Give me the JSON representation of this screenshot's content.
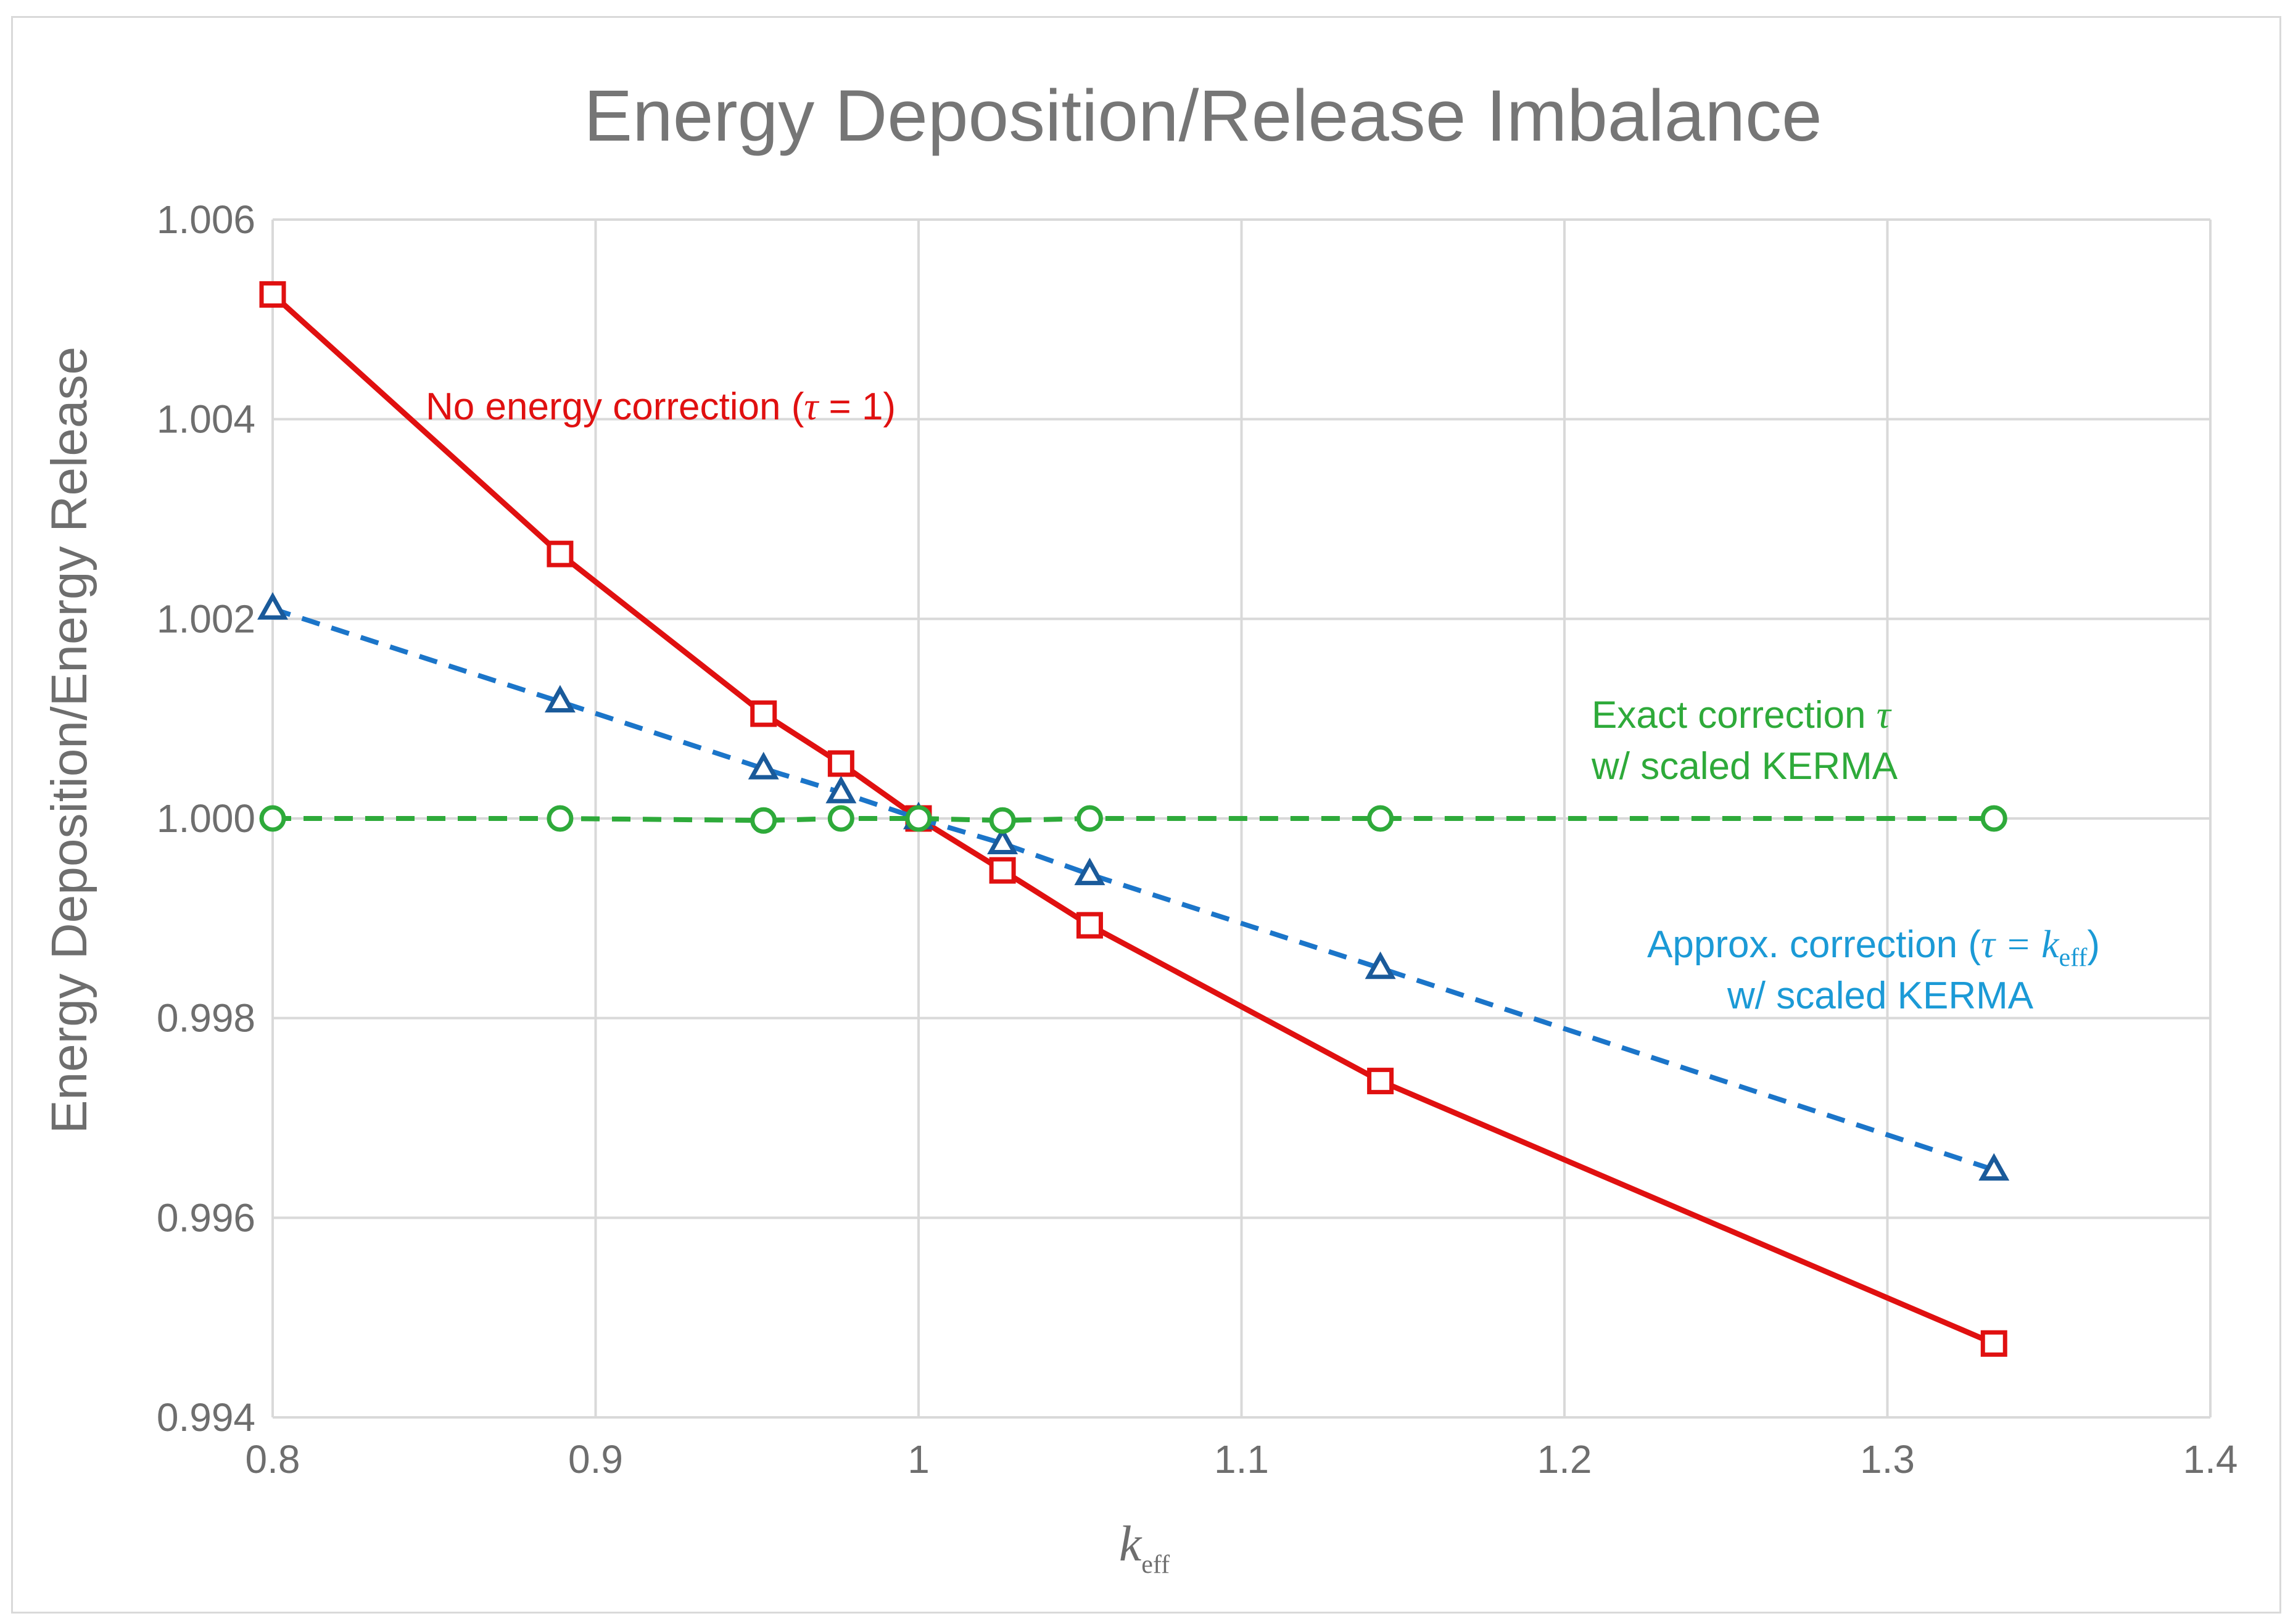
{
  "chart_data": {
    "type": "line",
    "title": "Energy Deposition/Release Imbalance",
    "xlabel": "k",
    "xlabel_sub": "eff",
    "ylabel": "Energy Deposition/Energy Release",
    "xlim": [
      0.8,
      1.4
    ],
    "ylim": [
      0.994,
      1.006
    ],
    "xticks": [
      0.8,
      0.9,
      1.0,
      1.1,
      1.2,
      1.3,
      1.4
    ],
    "xtick_labels": [
      "0.8",
      "0.9",
      "1",
      "1.1",
      "1.2",
      "1.3",
      "1.4"
    ],
    "yticks": [
      0.994,
      0.996,
      0.998,
      1.0,
      1.002,
      1.004,
      1.006
    ],
    "ytick_labels": [
      "0.994",
      "0.996",
      "0.998",
      "1.000",
      "1.002",
      "1.004",
      "1.006"
    ],
    "grid": true,
    "series": [
      {
        "name": "No energy correction",
        "color": "#e01010",
        "line": "solid",
        "marker": "square",
        "x": [
          0.8,
          0.889,
          0.952,
          0.976,
          1.0,
          1.026,
          1.053,
          1.143,
          1.333
        ],
        "y": [
          1.00525,
          1.00265,
          1.00105,
          1.00055,
          1.0,
          0.99948,
          0.99893,
          0.99737,
          0.99474
        ]
      },
      {
        "name": "Approx. correction w/ scaled KERMA",
        "color": "#1b75c9",
        "marker_color": "#1a5a9a",
        "line": "dashed",
        "marker": "triangle",
        "x": [
          0.8,
          0.889,
          0.952,
          0.976,
          1.0,
          1.026,
          1.053,
          1.143,
          1.333
        ],
        "y": [
          1.0021,
          1.00117,
          1.0005,
          1.00026,
          1.0,
          0.99975,
          0.99944,
          0.9985,
          0.99648
        ]
      },
      {
        "name": "Exact correction w/ scaled KERMA",
        "color": "#2eaa3a",
        "line": "dashed",
        "marker": "circle",
        "x": [
          0.8,
          0.889,
          0.952,
          0.976,
          1.0,
          1.026,
          1.053,
          1.143,
          1.333
        ],
        "y": [
          1.0,
          1.0,
          0.99998,
          1.0,
          1.0,
          0.99998,
          1.0,
          1.0,
          1.0
        ]
      }
    ],
    "annotations": {
      "red": {
        "part1": "No energy correction (",
        "tau": "τ",
        "part2": " = 1)"
      },
      "green": {
        "line1_text": "Exact correction ",
        "line1_tau": "τ",
        "line2": "w/ scaled KERMA"
      },
      "blue": {
        "part1": "Approx. correction (",
        "tau_eq": "τ = k",
        "sub": "eff",
        "part2": ")",
        "line2": "w/ scaled KERMA"
      }
    }
  }
}
